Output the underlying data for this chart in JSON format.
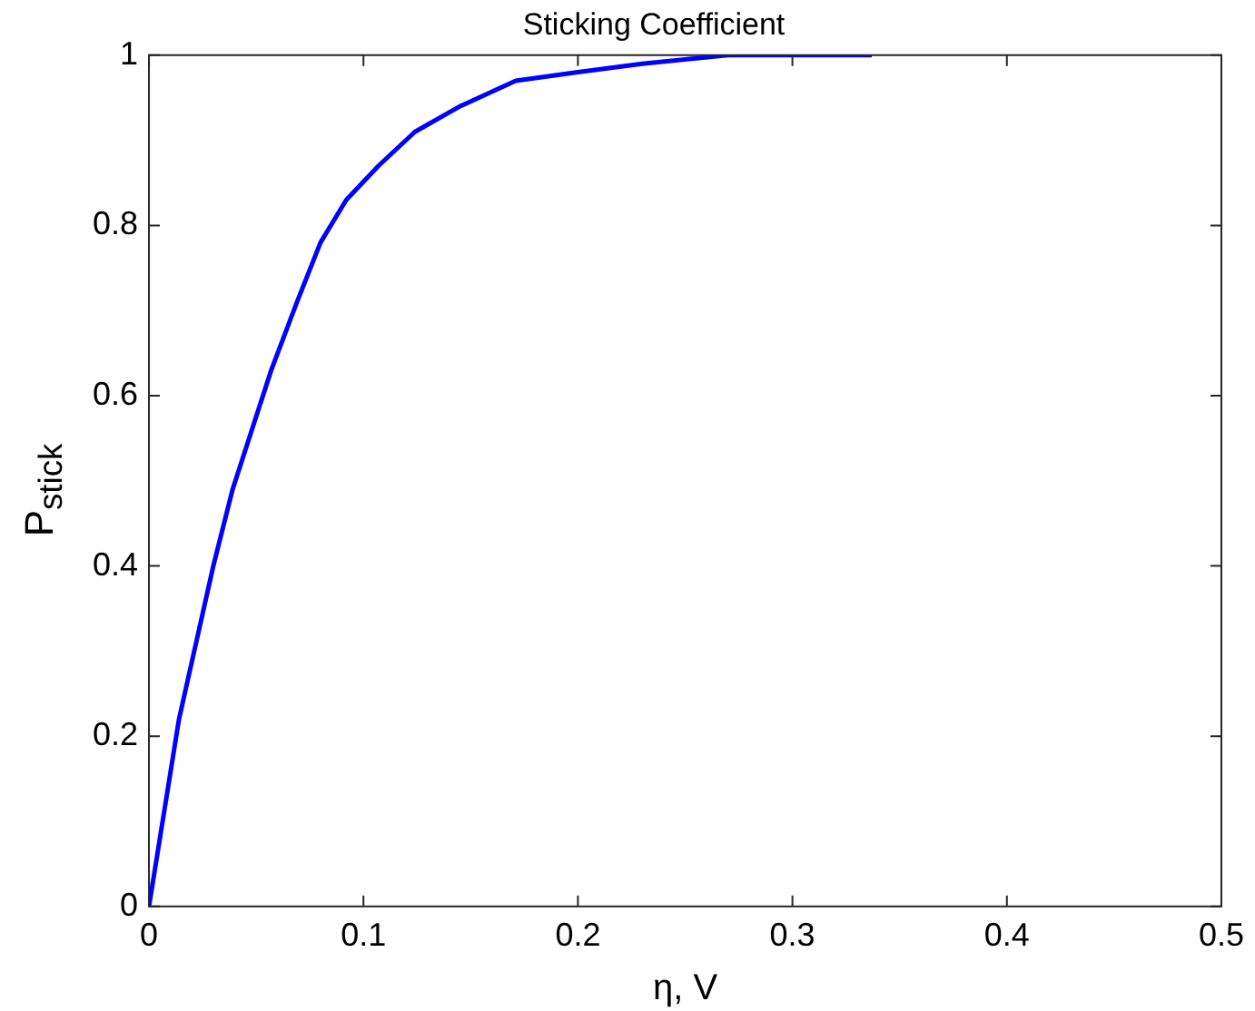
{
  "chart_data": {
    "type": "line",
    "title": "Sticking Coefficient",
    "xlabel": "η, V",
    "ylabel": "P$_{stick}$",
    "series": [
      {
        "color": "#0000ff",
        "x": [
          0,
          0.007,
          0.014,
          0.022,
          0.03,
          0.039,
          0.048,
          0.057,
          0.069,
          0.08,
          0.092,
          0.107,
          0.124,
          0.145,
          0.171,
          0.2,
          0.23,
          0.27,
          0.3,
          0.337
        ],
        "values": [
          0,
          0.11,
          0.22,
          0.31,
          0.4,
          0.49,
          0.56,
          0.63,
          0.71,
          0.78,
          0.83,
          0.87,
          0.91,
          0.94,
          0.97,
          0.98,
          0.99,
          1,
          1,
          1
        ]
      }
    ],
    "xlim": [
      0,
      0.5
    ],
    "xticks": [
      0,
      0.1,
      0.2,
      0.3,
      0.4,
      0.5
    ],
    "ylim": [
      0,
      1
    ],
    "yticks": [
      0,
      0.2,
      0.4,
      0.6,
      0.8,
      1
    ],
    "grid": false,
    "legend": false,
    "marker": "none",
    "line_style": "solid"
  }
}
